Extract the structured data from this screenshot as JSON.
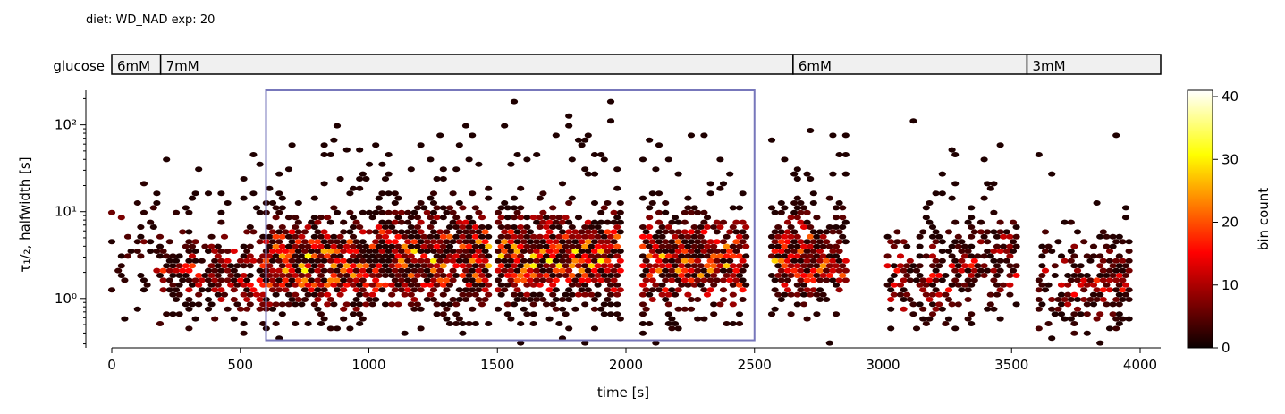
{
  "header": {
    "diet_label": "diet: WD_NAD  exp: 20"
  },
  "glucose_bar": {
    "label": "glucose",
    "segments": [
      {
        "label": "6mM",
        "start": 0,
        "end": 190
      },
      {
        "label": "7mM",
        "start": 190,
        "end": 2650
      },
      {
        "label": "6mM",
        "start": 2650,
        "end": 3560
      },
      {
        "label": "3mM",
        "start": 3560,
        "end": 4080
      }
    ],
    "fill_color": "#f0f0f0"
  },
  "chart_data": {
    "type": "heatmap",
    "subtype": "hexbin",
    "xlabel": "time [s]",
    "ylabel": "τ₁/₂, halfwidth [s]",
    "xlim": [
      0,
      4080
    ],
    "ylim": [
      0.27,
      250
    ],
    "yscale": "log",
    "xticks": [
      0,
      500,
      1000,
      1500,
      2000,
      2500,
      3000,
      3500,
      4000
    ],
    "xtick_labels": [
      "0",
      "500",
      "1000",
      "1500",
      "2000",
      "2500",
      "3000",
      "3500",
      "4000"
    ],
    "yticks": [
      1,
      10,
      100
    ],
    "ytick_labels": [
      "10⁰",
      "10¹",
      "10²"
    ],
    "colorbar": {
      "label": "bin count",
      "min": 0,
      "max": 41,
      "ticks": [
        0,
        10,
        20,
        30,
        40
      ],
      "tick_labels": [
        "0",
        "10",
        "20",
        "30",
        "40"
      ],
      "colormap": "hot"
    },
    "highlight_box": {
      "x": [
        600,
        2500
      ],
      "y": [
        0.33,
        250
      ],
      "color": "#7777bb"
    },
    "activity_clusters": [
      {
        "start": 0,
        "end": 170,
        "center": 5.0,
        "density": 0.25
      },
      {
        "start": 170,
        "end": 600,
        "center": 2.0,
        "density": 0.6
      },
      {
        "start": 600,
        "end": 1040,
        "center": 2.6,
        "density": 1.0
      },
      {
        "start": 1040,
        "end": 1470,
        "center": 3.0,
        "density": 1.0
      },
      {
        "start": 1500,
        "end": 1990,
        "center": 3.0,
        "density": 1.0
      },
      {
        "start": 2060,
        "end": 2470,
        "center": 2.6,
        "density": 0.9
      },
      {
        "start": 2560,
        "end": 2860,
        "center": 3.0,
        "density": 0.9
      },
      {
        "start": 3010,
        "end": 3270,
        "center": 1.6,
        "density": 0.55
      },
      {
        "start": 3270,
        "end": 3530,
        "center": 2.6,
        "density": 0.55
      },
      {
        "start": 3600,
        "end": 3960,
        "center": 1.6,
        "density": 0.55
      }
    ]
  }
}
